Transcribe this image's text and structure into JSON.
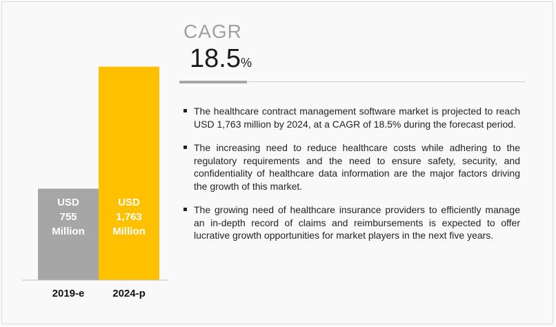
{
  "chart_data": {
    "type": "bar",
    "categories": [
      "2019-e",
      "2024-p"
    ],
    "values": [
      755,
      1763
    ],
    "value_labels": [
      [
        "USD",
        "755",
        "Million"
      ],
      [
        "USD",
        "1,763",
        "Million"
      ]
    ],
    "colors": [
      "#a6a6a6",
      "#ffc000"
    ],
    "ylim": [
      0,
      2000
    ],
    "grid": false,
    "title": "",
    "xlabel": "",
    "ylabel": ""
  },
  "cagr": {
    "label": "CAGR",
    "value": "18.5",
    "unit": "%"
  },
  "bullets": [
    "The healthcare contract management software market is projected to reach USD 1,763 million by 2024, at a CAGR of 18.5% during the forecast period.",
    "The increasing need to reduce healthcare costs while adhering to the regulatory requirements and the need to ensure safety, security, and confidentiality of healthcare data information are the major factors driving the growth of this market.",
    "The growing need of healthcare insurance providers to efficiently manage an in-depth record of claims and reimbursements is expected to offer lucrative growth opportunities for market players in the next five years."
  ]
}
